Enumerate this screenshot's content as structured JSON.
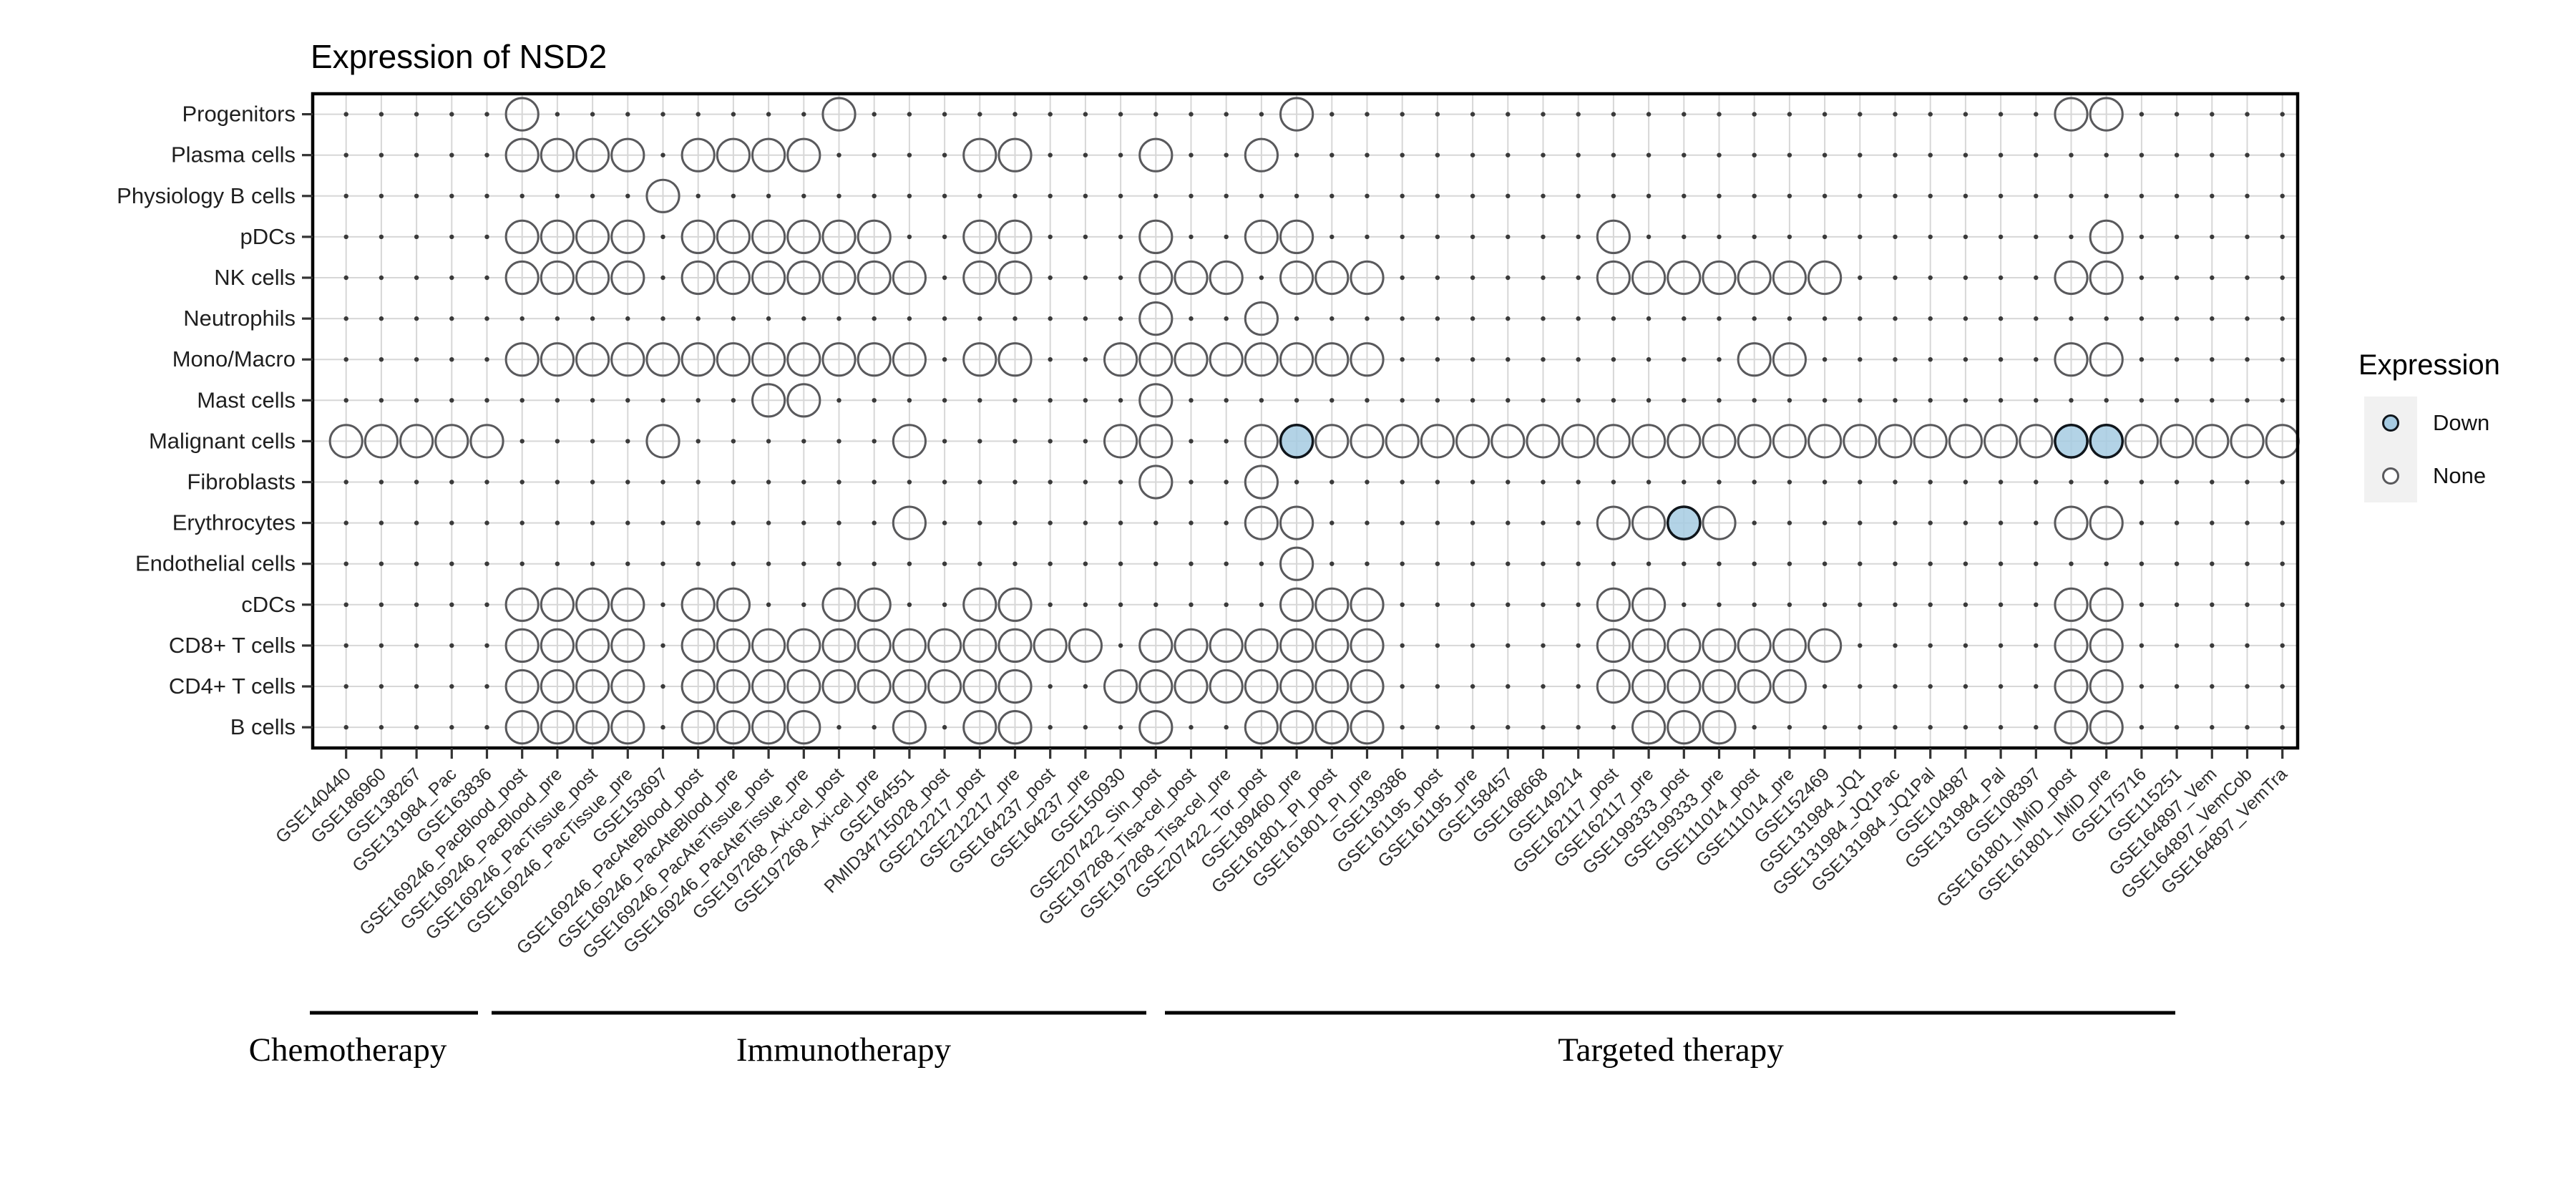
{
  "title": "Expression of NSD2",
  "legend": {
    "title": "Expression",
    "items": [
      {
        "label": "Down",
        "fill": "#A6CBE2",
        "stroke": "#10161C"
      },
      {
        "label": "None",
        "fill": "#FFFFFF",
        "stroke": "#59595C"
      }
    ]
  },
  "colors": {
    "down_fill": "#A6CBE2",
    "down_stroke": "#10161C",
    "none_fill": "#FFFFFF",
    "none_stroke": "#59595C",
    "grid_line": "#D7D7D7",
    "grid_dot": "#3A3A3A",
    "panel_border": "#000000",
    "axis_text": "#2E2E2E",
    "category_text": "#000000"
  },
  "treatment_groups": [
    {
      "label": "Chemotherapy",
      "col_start": 1,
      "col_end": 5
    },
    {
      "label": "Immunotherapy",
      "col_start": 6,
      "col_end": 23
    },
    {
      "label": "Targeted therapy",
      "col_start": 24,
      "col_end": 56
    }
  ],
  "chart_data": {
    "type": "heatmap",
    "title": "Expression of NSD2",
    "legend_position": "right",
    "x_categories": [
      "GSE140440",
      "GSE186960",
      "GSE138267",
      "GSE131984_Pac",
      "GSE163836",
      "GSE169246_PacBlood_post",
      "GSE169246_PacBlood_pre",
      "GSE169246_PacTissue_post",
      "GSE169246_PacTissue_pre",
      "GSE153697",
      "GSE169246_PacAteBlood_post",
      "GSE169246_PacAteBlood_pre",
      "GSE169246_PacAteTissue_post",
      "GSE169246_PacAteTissue_pre",
      "GSE197268_Axi-cel_post",
      "GSE197268_Axi-cel_pre",
      "GSE164551",
      "PMID34715028_post",
      "GSE212217_post",
      "GSE212217_pre",
      "GSE164237_post",
      "GSE164237_pre",
      "GSE150930",
      "GSE207422_Sin_post",
      "GSE197268_Tisa-cel_post",
      "GSE197268_Tisa-cel_pre",
      "GSE207422_Tor_post",
      "GSE189460_pre",
      "GSE161801_PI_post",
      "GSE161801_PI_pre",
      "GSE139386",
      "GSE161195_post",
      "GSE161195_pre",
      "GSE158457",
      "GSE168668",
      "GSE149214",
      "GSE162117_post",
      "GSE162117_pre",
      "GSE199333_post",
      "GSE199333_pre",
      "GSE111014_post",
      "GSE111014_pre",
      "GSE152469",
      "GSE131984_JQ1",
      "GSE131984_JQ1Pac",
      "GSE131984_JQ1Pal",
      "GSE104987",
      "GSE131984_Pal",
      "GSE108397",
      "GSE161801_IMiD_post",
      "GSE161801_IMiD_pre",
      "GSE175716",
      "GSE115251",
      "GSE164897_Vem",
      "GSE164897_VemCob",
      "GSE164897_VemTra"
    ],
    "y_categories": [
      "Progenitors",
      "Plasma cells",
      "Physiology B cells",
      "pDCs",
      "NK cells",
      "Neutrophils",
      "Mono/Macro",
      "Mast cells",
      "Malignant cells",
      "Fibroblasts",
      "Erythrocytes",
      "Endothelial cells",
      "cDCs",
      "CD8+ T cells",
      "CD4+ T cells",
      "B cells"
    ],
    "legend": {
      "title": "Expression",
      "entries": [
        "Down",
        "None"
      ]
    },
    "presence_by_row": {
      "Progenitors": [
        6,
        15,
        28,
        50,
        51
      ],
      "Plasma cells": [
        6,
        7,
        8,
        9,
        11,
        12,
        13,
        14,
        19,
        20,
        24,
        27
      ],
      "Physiology B cells": [
        10
      ],
      "pDCs": [
        6,
        7,
        8,
        9,
        11,
        12,
        13,
        14,
        15,
        16,
        19,
        20,
        24,
        27,
        28,
        37,
        51
      ],
      "NK cells": [
        6,
        7,
        8,
        9,
        11,
        12,
        13,
        14,
        15,
        16,
        17,
        19,
        20,
        24,
        25,
        26,
        28,
        29,
        30,
        37,
        38,
        39,
        40,
        41,
        42,
        43,
        50,
        51
      ],
      "Neutrophils": [
        24,
        27
      ],
      "Mono/Macro": [
        6,
        7,
        8,
        9,
        10,
        11,
        12,
        13,
        14,
        15,
        16,
        17,
        19,
        20,
        23,
        24,
        25,
        26,
        27,
        28,
        29,
        30,
        41,
        42,
        50,
        51
      ],
      "Mast cells": [
        13,
        14,
        24
      ],
      "Malignant cells": [
        1,
        2,
        3,
        4,
        5,
        10,
        17,
        23,
        24,
        27,
        28,
        29,
        30,
        31,
        32,
        33,
        34,
        35,
        36,
        37,
        38,
        39,
        40,
        41,
        42,
        43,
        44,
        45,
        46,
        47,
        48,
        49,
        50,
        51,
        52,
        53,
        54,
        55,
        56
      ],
      "Fibroblasts": [
        24,
        27
      ],
      "Erythrocytes": [
        17,
        27,
        28,
        37,
        38,
        39,
        40,
        50,
        51
      ],
      "Endothelial cells": [
        28
      ],
      "cDCs": [
        6,
        7,
        8,
        9,
        11,
        12,
        15,
        16,
        19,
        20,
        28,
        29,
        30,
        37,
        38,
        50,
        51
      ],
      "CD8+ T cells": [
        6,
        7,
        8,
        9,
        11,
        12,
        13,
        14,
        15,
        16,
        17,
        18,
        19,
        20,
        21,
        22,
        24,
        25,
        26,
        27,
        28,
        29,
        30,
        37,
        38,
        39,
        40,
        41,
        42,
        43,
        50,
        51
      ],
      "CD4+ T cells": [
        6,
        7,
        8,
        9,
        11,
        12,
        13,
        14,
        15,
        16,
        17,
        18,
        19,
        20,
        23,
        24,
        25,
        26,
        27,
        28,
        29,
        30,
        37,
        38,
        39,
        40,
        41,
        42,
        50,
        51
      ],
      "B cells": [
        6,
        7,
        8,
        9,
        11,
        12,
        13,
        14,
        17,
        19,
        20,
        24,
        27,
        28,
        29,
        30,
        38,
        39,
        40,
        50,
        51
      ]
    },
    "down_marks": [
      {
        "row": "Malignant cells",
        "column": "GSE189460_pre"
      },
      {
        "row": "Malignant cells",
        "column": "GSE161801_IMiD_post"
      },
      {
        "row": "Malignant cells",
        "column": "GSE161801_IMiD_pre"
      },
      {
        "row": "Erythrocytes",
        "column": "GSE199333_post"
      }
    ]
  }
}
